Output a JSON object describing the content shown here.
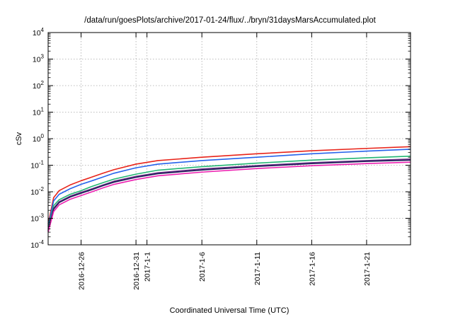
{
  "chart_data": {
    "type": "line",
    "title": "/data/run/goesPlots/archive/2017-01-24/flux/../bryn/31daysMarsAccumulated.plot",
    "xlabel": "Coordinated Universal Time (UTC)",
    "ylabel": "cSv",
    "x_range": [
      "2016-12-23",
      "2017-01-25"
    ],
    "ylim": [
      0.0001,
      10000
    ],
    "yscale": "log",
    "grid": true,
    "x_ticks": [
      {
        "date": "2016-12-26",
        "label": "2016-12-26"
      },
      {
        "date": "2016-12-31",
        "label": "2016-12-31"
      },
      {
        "date": "2017-01-01",
        "label": "2017-1-1"
      },
      {
        "date": "2017-01-06",
        "label": "2017-1-6"
      },
      {
        "date": "2017-01-11",
        "label": "2017-1-11"
      },
      {
        "date": "2017-01-16",
        "label": "2017-1-16"
      },
      {
        "date": "2017-01-21",
        "label": "2017-1-21"
      }
    ],
    "y_ticks": [
      {
        "value": 0.0001,
        "base": "10",
        "exp": "-4"
      },
      {
        "value": 0.001,
        "base": "10",
        "exp": "-3"
      },
      {
        "value": 0.01,
        "base": "10",
        "exp": "-2"
      },
      {
        "value": 0.1,
        "base": "10",
        "exp": "-1"
      },
      {
        "value": 1,
        "base": "10",
        "exp": "0"
      },
      {
        "value": 10,
        "base": "10",
        "exp": "1"
      },
      {
        "value": 100,
        "base": "10",
        "exp": "2"
      },
      {
        "value": 1000,
        "base": "10",
        "exp": "3"
      },
      {
        "value": 10000,
        "base": "10",
        "exp": "4"
      }
    ],
    "x": [
      "2016-12-23",
      "2016-12-23T12",
      "2016-12-24",
      "2016-12-25",
      "2016-12-26",
      "2016-12-27",
      "2016-12-28",
      "2016-12-29",
      "2016-12-31",
      "2017-01-02",
      "2017-01-06",
      "2017-01-11",
      "2017-01-16",
      "2017-01-21",
      "2017-01-25"
    ],
    "series": [
      {
        "color": "#e8241a",
        "values": [
          0.0006,
          0.006,
          0.011,
          0.018,
          0.026,
          0.036,
          0.05,
          0.068,
          0.11,
          0.15,
          0.2,
          0.27,
          0.35,
          0.43,
          0.5
        ]
      },
      {
        "color": "#2563eb",
        "values": [
          0.0005,
          0.0045,
          0.008,
          0.013,
          0.019,
          0.026,
          0.036,
          0.05,
          0.08,
          0.11,
          0.15,
          0.2,
          0.27,
          0.34,
          0.4
        ]
      },
      {
        "color": "#22b573",
        "values": [
          0.0004,
          0.003,
          0.005,
          0.008,
          0.011,
          0.016,
          0.022,
          0.03,
          0.046,
          0.065,
          0.088,
          0.12,
          0.155,
          0.19,
          0.22
        ]
      },
      {
        "color": "#6b2d86",
        "values": [
          0.00035,
          0.0024,
          0.0042,
          0.0068,
          0.0095,
          0.013,
          0.018,
          0.025,
          0.038,
          0.052,
          0.072,
          0.097,
          0.125,
          0.15,
          0.17
        ]
      },
      {
        "color": "#1f1f5a",
        "values": [
          0.00033,
          0.0022,
          0.0039,
          0.0063,
          0.0088,
          0.012,
          0.017,
          0.023,
          0.035,
          0.048,
          0.066,
          0.09,
          0.115,
          0.14,
          0.155
        ]
      },
      {
        "color": "#ec1fb0",
        "values": [
          0.0003,
          0.0018,
          0.0032,
          0.0052,
          0.0072,
          0.01,
          0.014,
          0.019,
          0.029,
          0.04,
          0.055,
          0.075,
          0.096,
          0.115,
          0.13
        ]
      }
    ]
  }
}
